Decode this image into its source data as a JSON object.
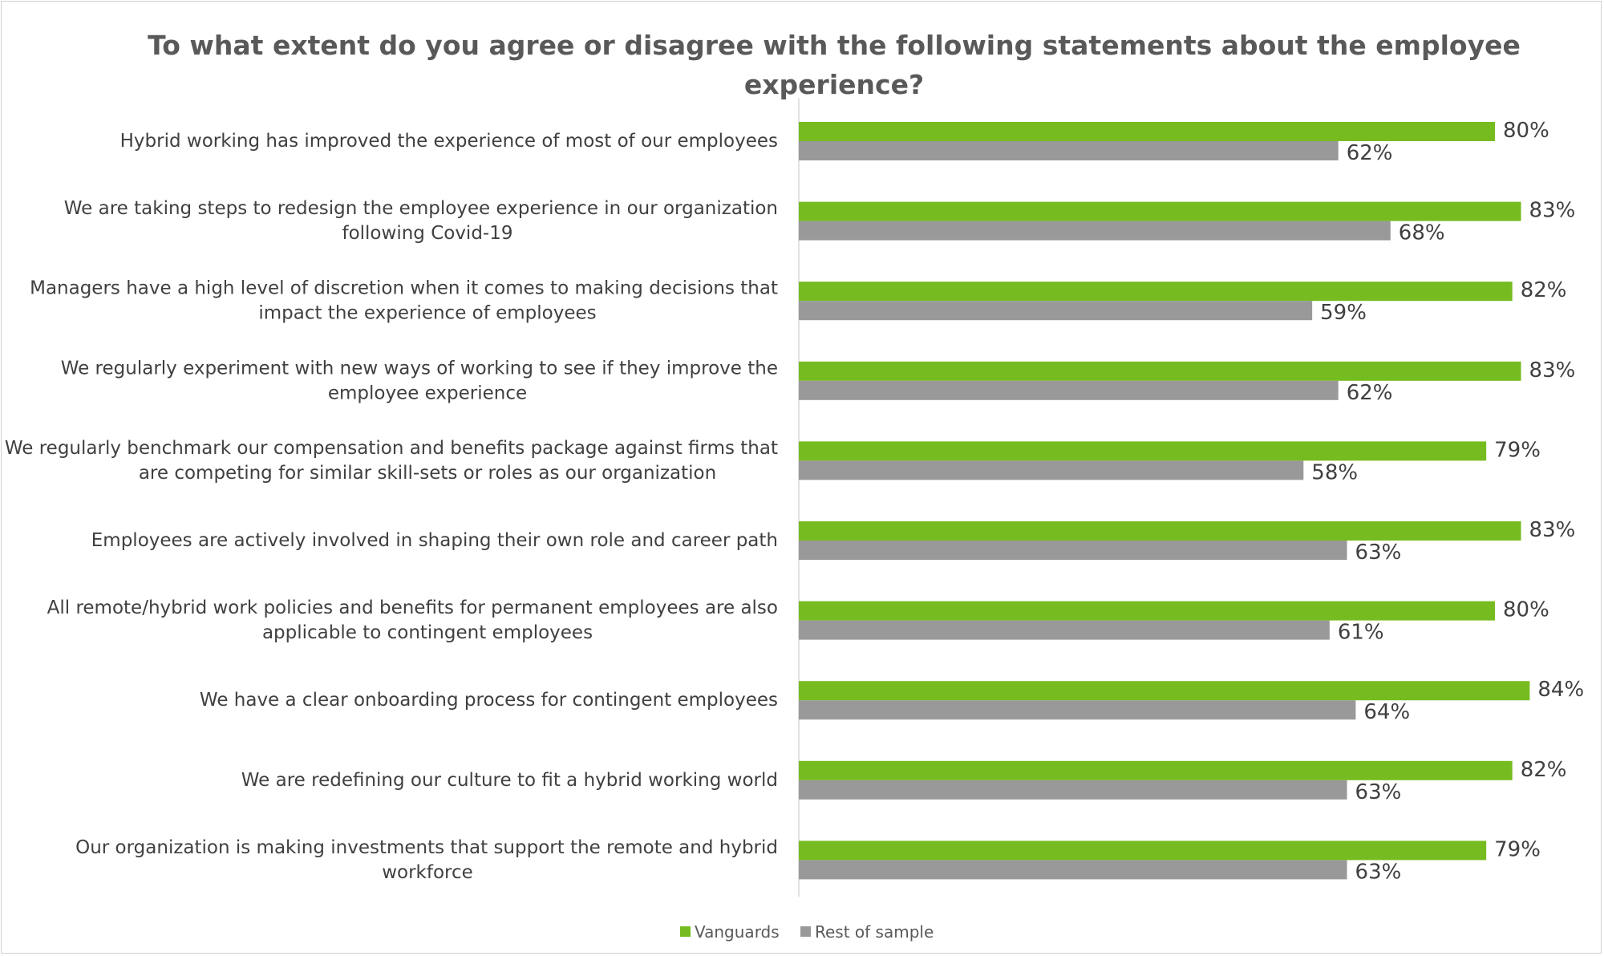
{
  "chart_data": {
    "type": "bar",
    "orientation": "horizontal",
    "title": "To what extent do you agree or disagree with the following statements about the employee experience?",
    "categories": [
      "Hybrid working has improved the experience of most of our employees",
      "We are taking steps to redesign the employee experience in our organization following Covid-19",
      "Managers have a high level of discretion when it comes to making decisions that impact the experience of employees",
      "We regularly experiment with new ways of working to see if they improve the employee experience",
      "We regularly benchmark our compensation and benefits package against firms that are competing for similar skill-sets or roles as our organization",
      "Employees are actively involved in shaping their own role and career path",
      "All remote/hybrid work policies and benefits for permanent employees are also applicable to contingent employees",
      "We have a clear onboarding process for contingent employees",
      "We are redefining our culture to fit a hybrid working world",
      "Our organization is making investments that support the remote and hybrid workforce"
    ],
    "category_lines": [
      [
        "Hybrid working has improved the experience of most of our employees"
      ],
      [
        "We are taking steps to redesign the employee experience in our organization",
        "following Covid-19"
      ],
      [
        "Managers have a high level of discretion when it comes to making decisions that",
        "impact the experience of employees"
      ],
      [
        "We regularly experiment with new ways of working to see if they improve the",
        "employee experience"
      ],
      [
        "We regularly benchmark our compensation and benefits package against firms that",
        "are competing for similar skill-sets or roles as our organization"
      ],
      [
        "Employees are actively involved in shaping their own role and career path"
      ],
      [
        "All remote/hybrid work policies and benefits for permanent employees are also",
        "applicable to contingent employees"
      ],
      [
        "We have a clear onboarding process for contingent employees"
      ],
      [
        "We are redefining our culture to fit a hybrid working world"
      ],
      [
        "Our organization is making investments that support the remote and hybrid",
        "workforce"
      ]
    ],
    "series": [
      {
        "name": "Vanguards",
        "color": "#76bc21",
        "values": [
          80,
          83,
          82,
          83,
          79,
          83,
          80,
          84,
          82,
          79
        ],
        "labels": [
          "80%",
          "83%",
          "82%",
          "83%",
          "79%",
          "83%",
          "80%",
          "84%",
          "82%",
          "79%"
        ]
      },
      {
        "name": "Rest of sample",
        "color": "#999999",
        "values": [
          62,
          68,
          59,
          62,
          58,
          63,
          61,
          64,
          63,
          63
        ],
        "labels": [
          "62%",
          "68%",
          "59%",
          "62%",
          "58%",
          "63%",
          "61%",
          "64%",
          "63%",
          "63%"
        ]
      }
    ],
    "value_unit": "%",
    "xlim": [
      0,
      100
    ],
    "grid": false,
    "legend_position": "bottom"
  }
}
